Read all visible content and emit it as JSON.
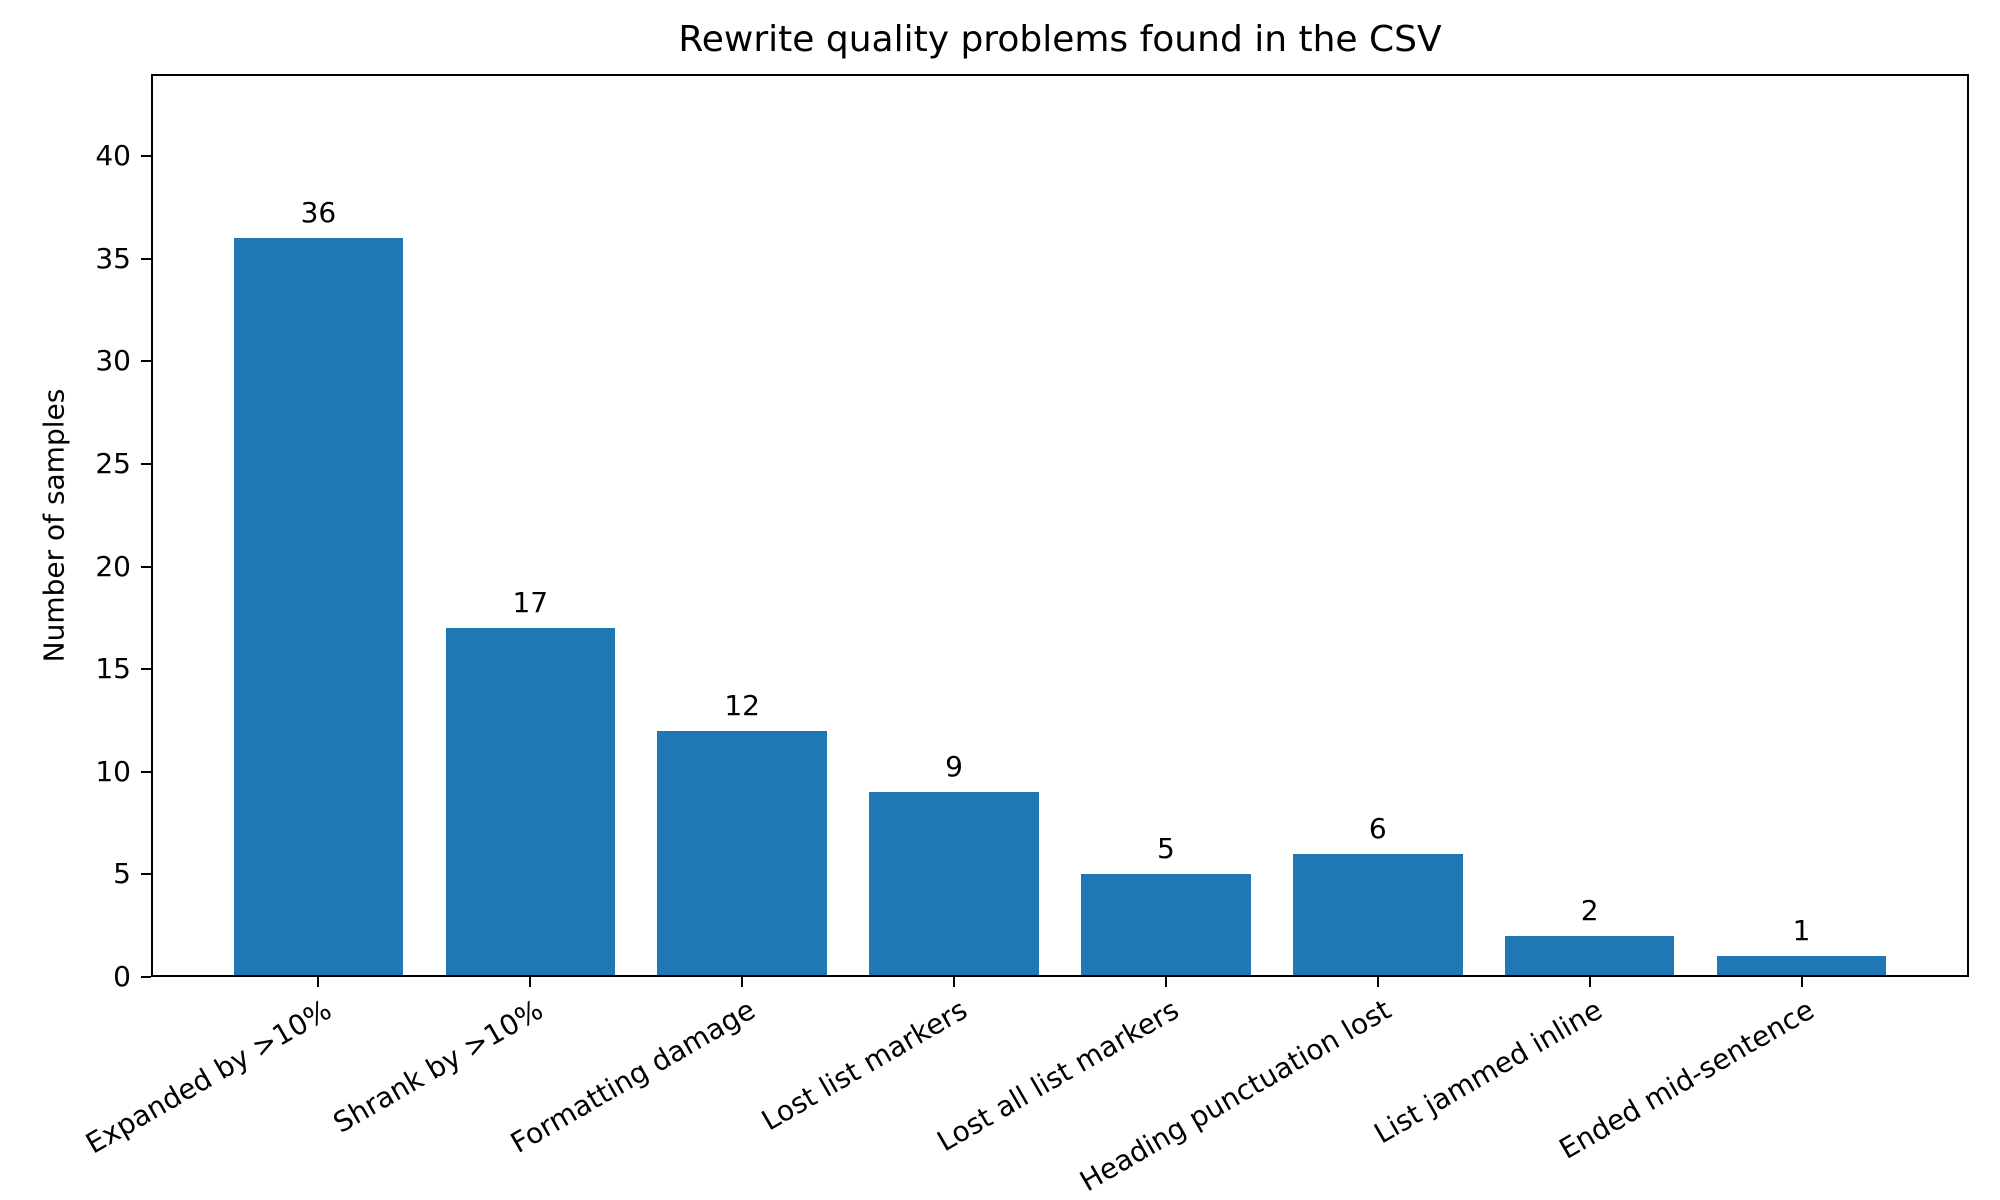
{
  "chart_data": {
    "type": "bar",
    "title": "Rewrite quality problems found in the CSV",
    "xlabel": "",
    "ylabel": "Number of samples",
    "categories": [
      "Expanded by >10%",
      "Shrank by >10%",
      "Formatting damage",
      "Lost list markers",
      "Lost all list markers",
      "Heading punctuation lost",
      "List jammed inline",
      "Ended mid-sentence"
    ],
    "values": [
      36,
      17,
      12,
      9,
      5,
      6,
      2,
      1
    ],
    "bar_color": "#1f77b4",
    "text_color": "#000000",
    "background_color": "#ffffff",
    "ylim": [
      0,
      44
    ],
    "xlim": [
      -0.79,
      7.79
    ],
    "yticks": [
      0,
      5,
      10,
      15,
      20,
      25,
      30,
      35,
      40
    ],
    "bar_width_units": 0.8,
    "x_tick_rotation_deg": 30,
    "grid": false,
    "legend": "none"
  }
}
